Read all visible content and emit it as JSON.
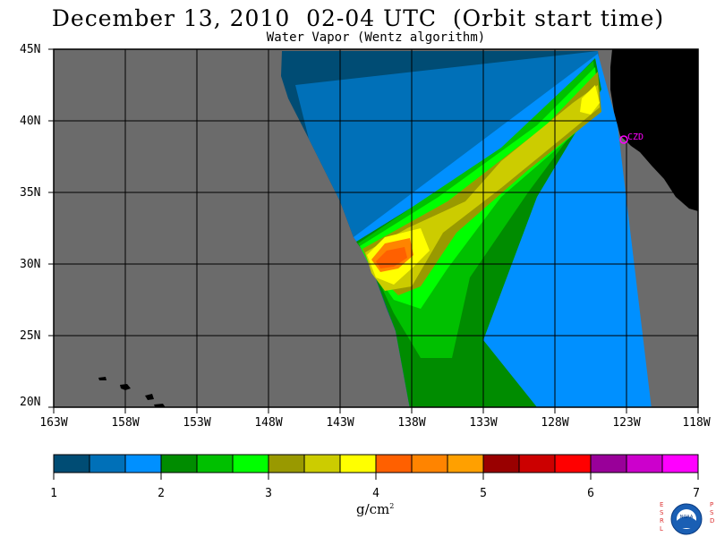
{
  "title": "December 13, 2010  02-04 UTC  (Orbit start time)",
  "subtitle": "Water Vapor (Wentz algorithm)",
  "lat_labels": [
    "45N",
    "40N",
    "35N",
    "30N",
    "25N",
    "20N"
  ],
  "lon_labels": [
    "163W",
    "158W",
    "153W",
    "148W",
    "143W",
    "138W",
    "133W",
    "128W",
    "123W",
    "118W"
  ],
  "station": {
    "label": "CZD",
    "color": "#ff00ff"
  },
  "colorbar": {
    "units": "g/cm",
    "units_exponent": "2",
    "tick_labels": [
      "1",
      "2",
      "3",
      "4",
      "5",
      "6",
      "7"
    ],
    "colors": [
      "#004c74",
      "#0070b8",
      "#0090ff",
      "#008c00",
      "#00c000",
      "#00ff00",
      "#999900",
      "#cccc00",
      "#ffff00",
      "#ff6000",
      "#ff8400",
      "#ffa000",
      "#990000",
      "#cc0000",
      "#ff0000",
      "#990099",
      "#cc00cc",
      "#ff00ff"
    ]
  },
  "map_colors": {
    "ocean_missing": "#6b6b6b",
    "land": "#000000",
    "grid": "#000000"
  },
  "logo": {
    "left_letters": "ESRL",
    "right_letters": "PSD",
    "center": "NOAA"
  }
}
